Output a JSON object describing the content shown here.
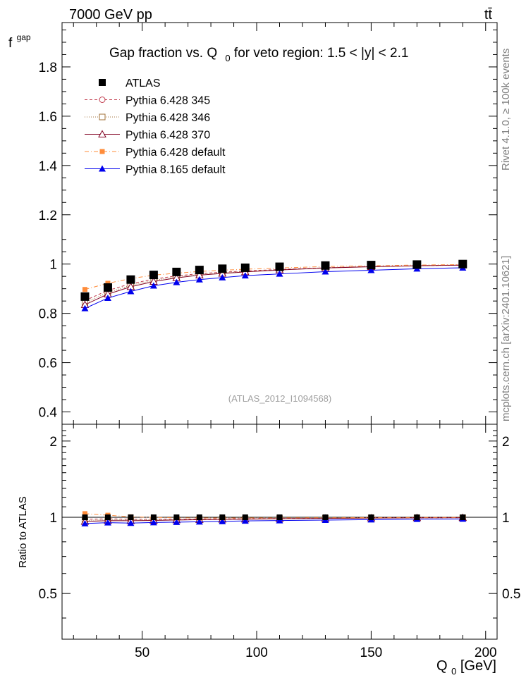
{
  "header": {
    "energy_label": "7000 GeV pp",
    "process_label": "tt̄"
  },
  "side_labels": {
    "rivet": "Rivet 4.1.0, ≥ 100k events",
    "mcplots": "mcplots.cern.ch [arXiv:2401.10621]"
  },
  "chart_data": [
    {
      "type": "line",
      "panel": "main",
      "title_parts": [
        "Gap fraction vs. Q",
        "0",
        " for veto region: 1.5 < |y| < 2.1"
      ],
      "watermark": "(ATLAS_2012_I1094568)",
      "ylabel_main": "f",
      "ylabel_sub": "gap",
      "ylim": [
        0.35,
        1.98
      ],
      "xlim": [
        15,
        205
      ],
      "yticks": [
        0.4,
        0.6,
        0.8,
        1.0,
        1.2,
        1.4,
        1.6,
        1.8
      ],
      "ytick_labels": [
        "0.4",
        "0.6",
        "0.8",
        "1",
        "1.2",
        "1.4",
        "1.6",
        "1.8"
      ],
      "x": [
        25,
        35,
        45,
        55,
        65,
        75,
        85,
        95,
        110,
        130,
        150,
        170,
        190
      ],
      "series": [
        {
          "name": "ATLAS",
          "style": "data",
          "color": "#000000",
          "values": [
            0.868,
            0.905,
            0.937,
            0.956,
            0.968,
            0.976,
            0.981,
            0.985,
            0.989,
            0.994,
            0.996,
            0.998,
            1.0
          ],
          "errors": [
            0.016,
            0.013,
            0.011,
            0.009,
            0.008,
            0.007,
            0.007,
            0.006,
            0.006,
            0.005,
            0.005,
            0.004,
            0.004
          ]
        },
        {
          "name": "Pythia 6.428 345",
          "style": "open-circle-dashed",
          "color": "#c0394b",
          "values": [
            0.852,
            0.893,
            0.92,
            0.939,
            0.952,
            0.961,
            0.967,
            0.972,
            0.978,
            0.985,
            0.99,
            0.993,
            0.996
          ]
        },
        {
          "name": "Pythia 6.428 346",
          "style": "open-square-dotted",
          "color": "#a0703a",
          "values": [
            0.843,
            0.885,
            0.914,
            0.934,
            0.948,
            0.958,
            0.965,
            0.97,
            0.977,
            0.985,
            0.99,
            0.993,
            0.996
          ]
        },
        {
          "name": "Pythia 6.428 370",
          "style": "open-triangle-solid",
          "color": "#800020",
          "values": [
            0.835,
            0.878,
            0.908,
            0.929,
            0.944,
            0.955,
            0.962,
            0.968,
            0.976,
            0.984,
            0.989,
            0.993,
            0.996
          ]
        },
        {
          "name": "Pythia 6.428 default",
          "style": "filled-square-dashdot",
          "color": "#ff8c3a",
          "values": [
            0.897,
            0.922,
            0.941,
            0.955,
            0.963,
            0.97,
            0.975,
            0.979,
            0.984,
            0.99,
            0.993,
            0.996,
            0.998
          ]
        },
        {
          "name": "Pythia 8.165 default",
          "style": "filled-triangle-solid",
          "color": "#0000ee",
          "values": [
            0.82,
            0.862,
            0.889,
            0.912,
            0.926,
            0.937,
            0.945,
            0.953,
            0.96,
            0.969,
            0.975,
            0.981,
            0.985
          ]
        }
      ]
    },
    {
      "type": "line",
      "panel": "ratio",
      "ylabel": "Ratio to ATLAS",
      "xlabel_main": "Q",
      "xlabel_sub": "0",
      "xlabel_unit": " [GeV]",
      "ylim": [
        0.33,
        2.33
      ],
      "yticks": [
        0.5,
        1.0,
        2.0
      ],
      "ytick_labels": [
        "0.5",
        "1",
        "2"
      ],
      "xticks": [
        50,
        100,
        150,
        200
      ],
      "xtick_labels": [
        "50",
        "100",
        "150",
        "200"
      ]
    }
  ]
}
